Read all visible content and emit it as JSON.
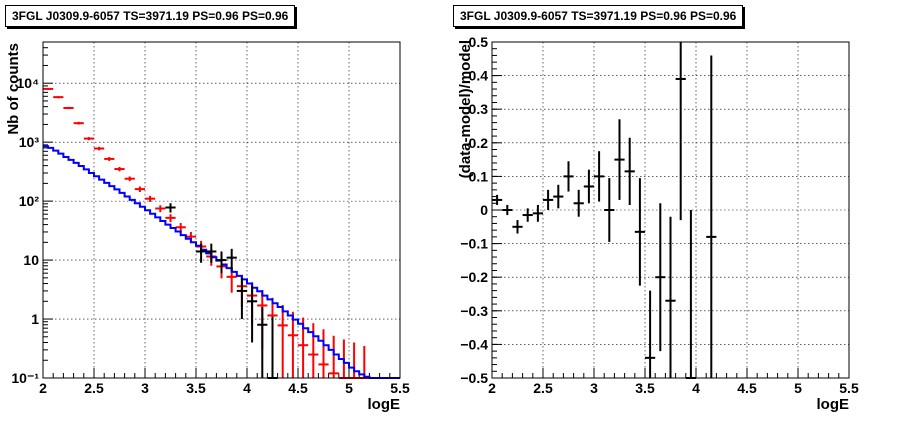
{
  "chart_data": [
    {
      "type": "line",
      "title": "3FGL J0309.9-6057 TS=3971.19 PS=0.96 PS=0.96",
      "xlabel": "logE",
      "ylabel": "Nb of counts",
      "xlim": [
        2,
        5.5
      ],
      "ylim": [
        0.1,
        50000
      ],
      "y_scale": "log",
      "grid": true,
      "x_ticks": [
        "2",
        "2.5",
        "3",
        "3.5",
        "4",
        "4.5",
        "5",
        "5.5"
      ],
      "y_ticks": [
        "10⁻¹",
        "1",
        "10",
        "10²",
        "10³",
        "10⁴"
      ],
      "series": [
        {
          "color": "#ff0000",
          "style": "errorbars",
          "x": [
            2.05,
            2.15,
            2.25,
            2.35,
            2.45,
            2.55,
            2.65,
            2.75,
            2.85,
            2.95,
            3.05,
            3.15,
            3.25,
            3.35,
            3.45,
            3.55,
            3.65,
            3.75,
            3.85,
            3.95,
            4.05,
            4.15,
            4.25,
            4.35,
            4.45,
            4.55,
            4.65,
            4.75,
            4.85,
            4.95,
            5.05,
            5.15
          ],
          "y": [
            8000,
            5800,
            3800,
            2100,
            1150,
            780,
            520,
            350,
            240,
            160,
            110,
            75,
            52,
            36,
            25,
            17,
            11.5,
            7.8,
            5.2,
            3.6,
            2.5,
            1.7,
            1.15,
            0.78,
            0.53,
            0.36,
            0.25,
            0.17,
            0.12,
            0.1,
            0.1,
            0.1
          ],
          "err": [
            300,
            230,
            170,
            110,
            70,
            55,
            40,
            30,
            22,
            17,
            13,
            10,
            8,
            6.5,
            5,
            4.2,
            3.5,
            2.9,
            2.4,
            2.0,
            1.7,
            1.4,
            1.15,
            0.95,
            0.8,
            0.7,
            0.6,
            0.5,
            0.4,
            0.35,
            0.3,
            0.25
          ]
        },
        {
          "color": "#0000ff",
          "style": "step",
          "x": [
            2.0,
            2.05,
            2.1,
            2.15,
            2.2,
            2.25,
            2.3,
            2.35,
            2.4,
            2.45,
            2.5,
            2.55,
            2.6,
            2.65,
            2.7,
            2.75,
            2.8,
            2.85,
            2.9,
            2.95,
            3.0,
            3.05,
            3.1,
            3.15,
            3.2,
            3.25,
            3.3,
            3.35,
            3.4,
            3.45,
            3.5,
            3.55,
            3.6,
            3.65,
            3.7,
            3.75,
            3.8,
            3.85,
            3.9,
            3.95,
            4.0,
            4.05,
            4.1,
            4.15,
            4.2,
            4.25,
            4.3,
            4.35,
            4.4,
            4.45,
            4.5,
            4.55,
            4.6,
            4.65,
            4.7,
            4.75,
            4.8,
            4.85,
            4.9,
            4.95,
            5.0,
            5.05,
            5.1,
            5.15,
            5.2,
            5.25,
            5.3,
            5.35,
            5.4,
            5.45
          ],
          "y": [
            850,
            800,
            720,
            640,
            560,
            500,
            445,
            395,
            345,
            300,
            265,
            232,
            204,
            180,
            158,
            138,
            120,
            105,
            92,
            80,
            70,
            61,
            53,
            46,
            40,
            35,
            30.5,
            26.5,
            23,
            20,
            17.5,
            15,
            13,
            11.2,
            9.8,
            8.4,
            7.3,
            6.3,
            5.4,
            4.7,
            4.0,
            3.4,
            2.95,
            2.5,
            2.15,
            1.85,
            1.6,
            1.35,
            1.15,
            0.98,
            0.83,
            0.7,
            0.6,
            0.51,
            0.43,
            0.36,
            0.3,
            0.25,
            0.21,
            0.18,
            0.15,
            0.13,
            0.115,
            0.105,
            0.1,
            0.1,
            0.1,
            0.1,
            0.1,
            0.1
          ]
        },
        {
          "color": "#000000",
          "style": "errorbars",
          "x": [
            3.25,
            3.55,
            3.65,
            3.75,
            3.85,
            3.95,
            4.05,
            4.15,
            4.25
          ],
          "y": [
            78,
            14,
            14,
            10,
            11,
            3,
            2,
            0.8,
            0.1
          ],
          "err": [
            14,
            5,
            5,
            4,
            4.5,
            2,
            1.6,
            0.8,
            1.0
          ]
        }
      ]
    },
    {
      "type": "scatter",
      "title": "3FGL J0309.9-6057 TS=3971.19 PS=0.96 PS=0.96",
      "xlabel": "logE",
      "ylabel": "(data-model)/model",
      "xlim": [
        2,
        5.5
      ],
      "ylim": [
        -0.5,
        0.5
      ],
      "grid": true,
      "x_ticks": [
        "2",
        "2.5",
        "3",
        "3.5",
        "4",
        "4.5",
        "5",
        "5.5"
      ],
      "y_ticks": [
        "−0.5",
        "−0.4",
        "−0.3",
        "−0.2",
        "−0.1",
        "0",
        "0.1",
        "0.2",
        "0.3",
        "0.4",
        "0.5"
      ],
      "series": [
        {
          "color": "#000000",
          "style": "errorbars",
          "x": [
            2.05,
            2.15,
            2.25,
            2.35,
            2.45,
            2.55,
            2.65,
            2.75,
            2.85,
            2.95,
            3.05,
            3.15,
            3.25,
            3.35,
            3.45,
            3.55,
            3.65,
            3.75,
            3.85,
            3.95,
            4.15
          ],
          "y": [
            0.03,
            0.0,
            -0.05,
            -0.015,
            -0.01,
            0.03,
            0.04,
            0.1,
            0.02,
            0.07,
            0.1,
            0.0,
            0.15,
            0.115,
            -0.065,
            -0.44,
            -0.2,
            -0.27,
            0.39,
            -0.5,
            -0.08
          ],
          "err": [
            0.015,
            0.015,
            0.02,
            0.02,
            0.025,
            0.03,
            0.035,
            0.045,
            0.04,
            0.05,
            0.075,
            0.095,
            0.12,
            0.1,
            0.16,
            0.2,
            0.22,
            0.25,
            0.42,
            0.5,
            0.54
          ]
        }
      ]
    }
  ]
}
